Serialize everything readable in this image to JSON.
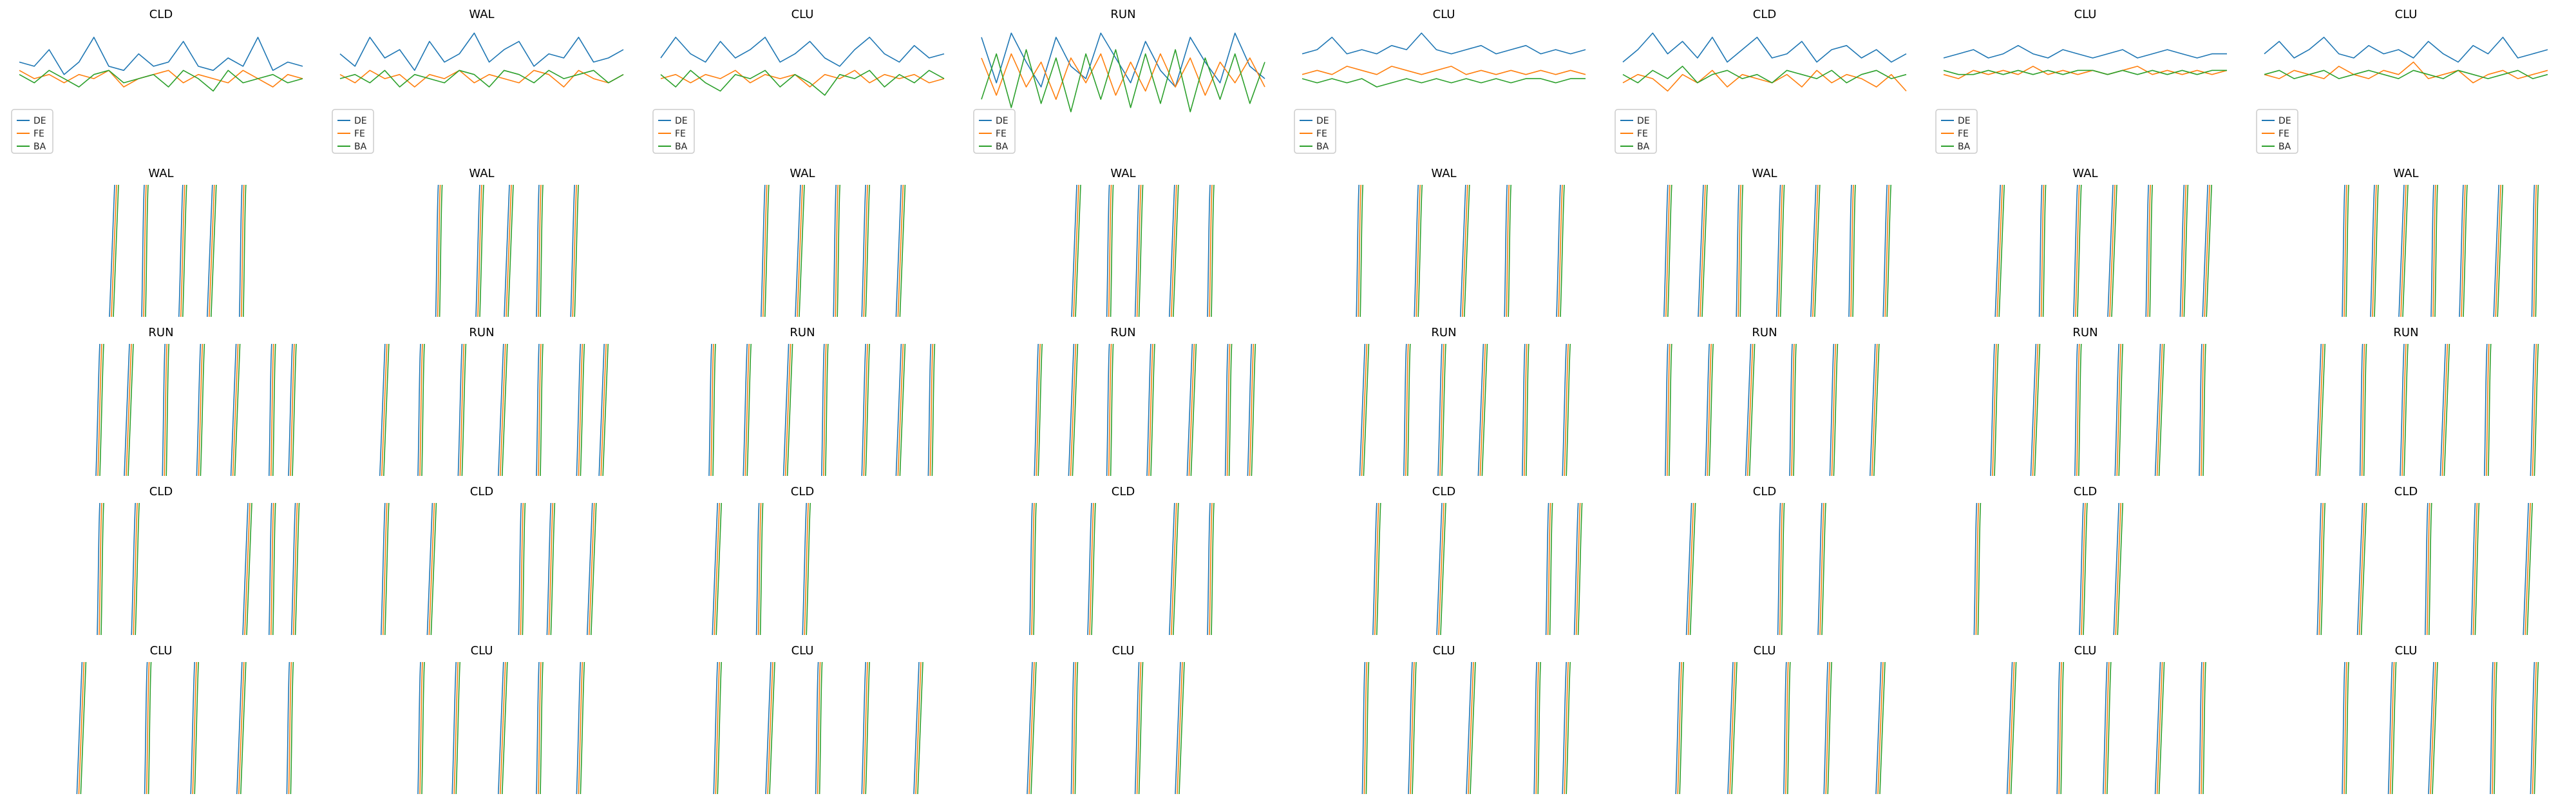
{
  "figure": {
    "colors": {
      "DE": "#1f77b4",
      "FE": "#ff7f0e",
      "BA": "#2ca02c"
    },
    "legend_labels": [
      "DE",
      "FE",
      "BA"
    ]
  },
  "chart_data": [
    {
      "type": "line",
      "title": "CLD",
      "row": 0,
      "col": 0,
      "series": [
        {
          "name": "DE",
          "values": [
            0.3,
            0.2,
            0.6,
            0.0,
            0.3,
            0.9,
            0.2,
            0.1,
            0.5,
            0.2,
            0.3,
            0.8,
            0.2,
            0.1,
            0.4,
            0.2,
            0.9,
            0.1,
            0.3,
            0.2
          ]
        },
        {
          "name": "FE",
          "values": [
            0.1,
            -0.1,
            0.0,
            -0.2,
            0.0,
            -0.1,
            0.1,
            -0.3,
            -0.1,
            0.0,
            0.1,
            -0.2,
            0.0,
            -0.1,
            -0.2,
            0.1,
            -0.1,
            -0.3,
            0.0,
            -0.1
          ]
        },
        {
          "name": "BA",
          "values": [
            0.0,
            -0.2,
            0.1,
            -0.1,
            -0.3,
            0.0,
            0.1,
            -0.2,
            -0.1,
            0.0,
            -0.3,
            0.1,
            -0.1,
            -0.4,
            0.1,
            -0.2,
            -0.1,
            0.0,
            -0.2,
            -0.1
          ]
        }
      ]
    },
    {
      "type": "line",
      "title": "WAL",
      "row": 0,
      "col": 1,
      "series": [
        {
          "name": "DE",
          "values": [
            0.5,
            0.2,
            0.9,
            0.4,
            0.6,
            0.1,
            0.8,
            0.3,
            0.5,
            1.0,
            0.3,
            0.6,
            0.8,
            0.2,
            0.5,
            0.4,
            0.9,
            0.3,
            0.4,
            0.6
          ]
        },
        {
          "name": "FE",
          "values": [
            0.0,
            -0.2,
            0.1,
            -0.1,
            0.0,
            -0.3,
            0.0,
            -0.1,
            0.1,
            -0.2,
            0.0,
            -0.1,
            -0.2,
            0.1,
            0.0,
            -0.3,
            0.1,
            -0.1,
            -0.2,
            0.0
          ]
        },
        {
          "name": "BA",
          "values": [
            -0.1,
            0.0,
            -0.2,
            0.1,
            -0.3,
            0.0,
            -0.1,
            -0.2,
            0.1,
            0.0,
            -0.3,
            0.1,
            0.0,
            -0.2,
            0.1,
            -0.1,
            0.0,
            0.1,
            -0.2,
            0.0
          ]
        }
      ]
    },
    {
      "type": "line",
      "title": "CLU",
      "row": 0,
      "col": 2,
      "series": [
        {
          "name": "DE",
          "values": [
            0.4,
            0.9,
            0.5,
            0.3,
            0.8,
            0.4,
            0.6,
            0.9,
            0.3,
            0.5,
            0.8,
            0.4,
            0.2,
            0.6,
            0.9,
            0.5,
            0.3,
            0.7,
            0.4,
            0.5
          ]
        },
        {
          "name": "FE",
          "values": [
            -0.1,
            0.0,
            -0.2,
            0.0,
            -0.1,
            0.1,
            -0.2,
            0.0,
            -0.1,
            0.0,
            -0.3,
            0.0,
            -0.1,
            0.1,
            -0.2,
            0.0,
            -0.1,
            0.0,
            -0.2,
            -0.1
          ]
        },
        {
          "name": "BA",
          "values": [
            0.0,
            -0.3,
            0.1,
            -0.2,
            -0.4,
            0.0,
            -0.1,
            0.1,
            -0.3,
            0.0,
            -0.2,
            -0.5,
            0.0,
            -0.1,
            0.1,
            -0.3,
            0.0,
            -0.2,
            0.1,
            -0.1
          ]
        }
      ]
    },
    {
      "type": "line",
      "title": "RUN",
      "row": 0,
      "col": 3,
      "series": [
        {
          "name": "DE",
          "values": [
            0.9,
            -0.2,
            1.0,
            0.3,
            -0.3,
            0.9,
            0.2,
            -0.1,
            1.0,
            0.4,
            -0.2,
            0.8,
            0.1,
            -0.3,
            0.9,
            0.3,
            -0.2,
            1.0,
            0.2,
            -0.1
          ]
        },
        {
          "name": "FE",
          "values": [
            0.4,
            -0.5,
            0.5,
            -0.3,
            0.3,
            -0.6,
            0.4,
            -0.2,
            0.5,
            -0.5,
            0.3,
            -0.4,
            0.5,
            -0.3,
            0.4,
            -0.5,
            0.3,
            -0.2,
            0.4,
            -0.3
          ]
        },
        {
          "name": "BA",
          "values": [
            -0.6,
            0.5,
            -0.8,
            0.6,
            -0.7,
            0.4,
            -0.9,
            0.5,
            -0.6,
            0.6,
            -0.8,
            0.5,
            -0.7,
            0.6,
            -0.9,
            0.4,
            -0.6,
            0.5,
            -0.7,
            0.3
          ]
        }
      ]
    },
    {
      "type": "line",
      "title": "CLU",
      "row": 0,
      "col": 4,
      "series": [
        {
          "name": "DE",
          "values": [
            0.5,
            0.6,
            0.9,
            0.5,
            0.6,
            0.5,
            0.7,
            0.6,
            1.0,
            0.6,
            0.5,
            0.6,
            0.7,
            0.5,
            0.6,
            0.7,
            0.5,
            0.6,
            0.5,
            0.6
          ]
        },
        {
          "name": "FE",
          "values": [
            0.0,
            0.1,
            0.0,
            0.2,
            0.1,
            0.0,
            0.2,
            0.1,
            0.0,
            0.1,
            0.2,
            0.0,
            0.1,
            0.0,
            0.1,
            0.0,
            0.1,
            0.0,
            0.1,
            0.0
          ]
        },
        {
          "name": "BA",
          "values": [
            -0.1,
            -0.2,
            -0.1,
            -0.2,
            -0.1,
            -0.3,
            -0.2,
            -0.1,
            -0.2,
            -0.1,
            -0.2,
            -0.1,
            -0.2,
            -0.1,
            -0.2,
            -0.1,
            -0.1,
            -0.2,
            -0.1,
            -0.1
          ]
        }
      ]
    },
    {
      "type": "line",
      "title": "CLD",
      "row": 0,
      "col": 5,
      "series": [
        {
          "name": "DE",
          "values": [
            0.3,
            0.6,
            1.0,
            0.5,
            0.8,
            0.4,
            0.9,
            0.3,
            0.6,
            0.9,
            0.4,
            0.5,
            0.8,
            0.3,
            0.6,
            0.7,
            0.4,
            0.6,
            0.3,
            0.5
          ]
        },
        {
          "name": "FE",
          "values": [
            -0.2,
            0.0,
            -0.1,
            -0.4,
            0.0,
            -0.2,
            0.1,
            -0.3,
            0.0,
            -0.1,
            -0.2,
            0.0,
            -0.3,
            0.1,
            -0.2,
            0.0,
            -0.1,
            -0.3,
            0.0,
            -0.4
          ]
        },
        {
          "name": "BA",
          "values": [
            0.0,
            -0.2,
            0.1,
            -0.1,
            0.2,
            -0.2,
            0.0,
            0.1,
            -0.1,
            0.0,
            -0.2,
            0.1,
            0.0,
            -0.1,
            0.1,
            -0.2,
            0.0,
            0.1,
            -0.1,
            0.0
          ]
        }
      ]
    },
    {
      "type": "line",
      "title": "CLU",
      "row": 0,
      "col": 6,
      "series": [
        {
          "name": "DE",
          "values": [
            0.4,
            0.5,
            0.6,
            0.4,
            0.5,
            0.7,
            0.5,
            0.4,
            0.6,
            0.5,
            0.4,
            0.5,
            0.6,
            0.4,
            0.5,
            0.6,
            0.5,
            0.4,
            0.5,
            0.5
          ]
        },
        {
          "name": "FE",
          "values": [
            0.0,
            -0.1,
            0.1,
            0.0,
            0.1,
            0.0,
            0.2,
            0.0,
            0.1,
            0.0,
            0.1,
            0.0,
            0.1,
            0.2,
            0.0,
            0.1,
            0.0,
            0.1,
            0.0,
            0.1
          ]
        },
        {
          "name": "BA",
          "values": [
            0.1,
            0.0,
            0.0,
            0.1,
            0.0,
            0.1,
            0.0,
            0.1,
            0.0,
            0.1,
            0.1,
            0.0,
            0.1,
            0.0,
            0.1,
            0.0,
            0.1,
            0.0,
            0.1,
            0.1
          ]
        }
      ]
    },
    {
      "type": "line",
      "title": "CLU",
      "row": 0,
      "col": 7,
      "series": [
        {
          "name": "DE",
          "values": [
            0.5,
            0.8,
            0.4,
            0.6,
            0.9,
            0.5,
            0.4,
            0.7,
            0.5,
            0.6,
            0.4,
            0.8,
            0.5,
            0.3,
            0.7,
            0.5,
            0.9,
            0.4,
            0.5,
            0.6
          ]
        },
        {
          "name": "FE",
          "values": [
            0.0,
            -0.1,
            0.1,
            0.0,
            -0.1,
            0.2,
            0.0,
            -0.1,
            0.1,
            0.0,
            0.3,
            -0.1,
            0.0,
            0.1,
            -0.2,
            0.0,
            0.1,
            -0.1,
            0.0,
            0.1
          ]
        },
        {
          "name": "BA",
          "values": [
            0.0,
            0.1,
            -0.1,
            0.0,
            0.1,
            -0.1,
            0.0,
            0.1,
            0.0,
            -0.1,
            0.1,
            0.0,
            -0.1,
            0.1,
            0.0,
            -0.1,
            0.0,
            0.1,
            -0.1,
            0.0
          ]
        }
      ]
    },
    {
      "type": "line",
      "title": "WAL",
      "row": 1,
      "col": 0,
      "spikes": [
        0.35,
        0.45,
        0.58,
        0.68,
        0.78
      ]
    },
    {
      "type": "line",
      "title": "WAL",
      "row": 1,
      "col": 1,
      "spikes": [
        0.36,
        0.5,
        0.6,
        0.7,
        0.82
      ]
    },
    {
      "type": "line",
      "title": "WAL",
      "row": 1,
      "col": 2,
      "spikes": [
        0.38,
        0.5,
        0.62,
        0.72,
        0.84
      ]
    },
    {
      "type": "line",
      "title": "WAL",
      "row": 1,
      "col": 3,
      "spikes": [
        0.35,
        0.46,
        0.56,
        0.68,
        0.8
      ]
    },
    {
      "type": "line",
      "title": "WAL",
      "row": 1,
      "col": 4,
      "spikes": [
        0.22,
        0.42,
        0.58,
        0.72,
        0.9
      ]
    },
    {
      "type": "line",
      "title": "WAL",
      "row": 1,
      "col": 5,
      "spikes": [
        0.18,
        0.3,
        0.42,
        0.56,
        0.68,
        0.8,
        0.92
      ]
    },
    {
      "type": "line",
      "title": "WAL",
      "row": 1,
      "col": 6,
      "spikes": [
        0.22,
        0.36,
        0.48,
        0.6,
        0.72,
        0.84,
        0.92
      ]
    },
    {
      "type": "line",
      "title": "WAL",
      "row": 1,
      "col": 7,
      "spikes": [
        0.3,
        0.4,
        0.5,
        0.6,
        0.7,
        0.82,
        0.94
      ]
    },
    {
      "type": "line",
      "title": "RUN",
      "row": 2,
      "col": 0,
      "spikes": [
        0.3,
        0.4,
        0.52,
        0.64,
        0.76,
        0.88,
        0.95
      ]
    },
    {
      "type": "line",
      "title": "RUN",
      "row": 2,
      "col": 1,
      "spikes": [
        0.18,
        0.3,
        0.44,
        0.58,
        0.7,
        0.84,
        0.92
      ]
    },
    {
      "type": "line",
      "title": "RUN",
      "row": 2,
      "col": 2,
      "spikes": [
        0.2,
        0.32,
        0.46,
        0.58,
        0.72,
        0.84,
        0.94
      ]
    },
    {
      "type": "line",
      "title": "RUN",
      "row": 2,
      "col": 3,
      "spikes": [
        0.22,
        0.34,
        0.46,
        0.6,
        0.74,
        0.86,
        0.94
      ]
    },
    {
      "type": "line",
      "title": "RUN",
      "row": 2,
      "col": 4,
      "spikes": [
        0.24,
        0.38,
        0.5,
        0.64,
        0.78,
        0.92
      ]
    },
    {
      "type": "line",
      "title": "RUN",
      "row": 2,
      "col": 5,
      "spikes": [
        0.18,
        0.32,
        0.46,
        0.6,
        0.74,
        0.88
      ]
    },
    {
      "type": "line",
      "title": "RUN",
      "row": 2,
      "col": 6,
      "spikes": [
        0.2,
        0.34,
        0.48,
        0.62,
        0.76,
        0.9
      ]
    },
    {
      "type": "line",
      "title": "RUN",
      "row": 2,
      "col": 7,
      "spikes": [
        0.22,
        0.36,
        0.5,
        0.64,
        0.78,
        0.94
      ]
    },
    {
      "type": "line",
      "title": "CLD",
      "row": 3,
      "col": 0,
      "spikes": [
        0.3,
        0.42,
        0.8,
        0.88,
        0.96
      ]
    },
    {
      "type": "line",
      "title": "CLD",
      "row": 3,
      "col": 1,
      "spikes": [
        0.18,
        0.34,
        0.64,
        0.74,
        0.88
      ]
    },
    {
      "type": "line",
      "title": "CLD",
      "row": 3,
      "col": 2,
      "spikes": [
        0.22,
        0.36,
        0.52
      ]
    },
    {
      "type": "line",
      "title": "CLD",
      "row": 3,
      "col": 3,
      "spikes": [
        0.2,
        0.4,
        0.68,
        0.8
      ]
    },
    {
      "type": "line",
      "title": "CLD",
      "row": 3,
      "col": 4,
      "spikes": [
        0.28,
        0.5,
        0.86,
        0.96
      ]
    },
    {
      "type": "line",
      "title": "CLD",
      "row": 3,
      "col": 5,
      "spikes": [
        0.26,
        0.56,
        0.7
      ]
    },
    {
      "type": "line",
      "title": "CLD",
      "row": 3,
      "col": 6,
      "spikes": [
        0.14,
        0.5,
        0.62
      ]
    },
    {
      "type": "line",
      "title": "CLD",
      "row": 3,
      "col": 7,
      "spikes": [
        0.22,
        0.36,
        0.58,
        0.74,
        0.92
      ]
    },
    {
      "type": "line",
      "title": "CLU",
      "row": 4,
      "col": 0,
      "spikes": [
        0.24,
        0.46,
        0.62,
        0.78,
        0.94
      ]
    },
    {
      "type": "line",
      "title": "CLU",
      "row": 4,
      "col": 1,
      "spikes": [
        0.3,
        0.42,
        0.58,
        0.7,
        0.84
      ]
    },
    {
      "type": "line",
      "title": "CLU",
      "row": 4,
      "col": 2,
      "spikes": [
        0.22,
        0.4,
        0.56,
        0.72,
        0.9
      ]
    },
    {
      "type": "line",
      "title": "CLU",
      "row": 4,
      "col": 3,
      "spikes": [
        0.2,
        0.34,
        0.56,
        0.7
      ]
    },
    {
      "type": "line",
      "title": "CLU",
      "row": 4,
      "col": 4,
      "spikes": [
        0.24,
        0.4,
        0.6,
        0.82,
        0.92
      ]
    },
    {
      "type": "line",
      "title": "CLU",
      "row": 4,
      "col": 5,
      "spikes": [
        0.22,
        0.4,
        0.58,
        0.72,
        0.9
      ]
    },
    {
      "type": "line",
      "title": "CLU",
      "row": 4,
      "col": 6,
      "spikes": [
        0.26,
        0.42,
        0.58,
        0.76,
        0.9
      ]
    },
    {
      "type": "line",
      "title": "CLU",
      "row": 4,
      "col": 7,
      "spikes": [
        0.3,
        0.46,
        0.6,
        0.8,
        0.94
      ]
    }
  ]
}
